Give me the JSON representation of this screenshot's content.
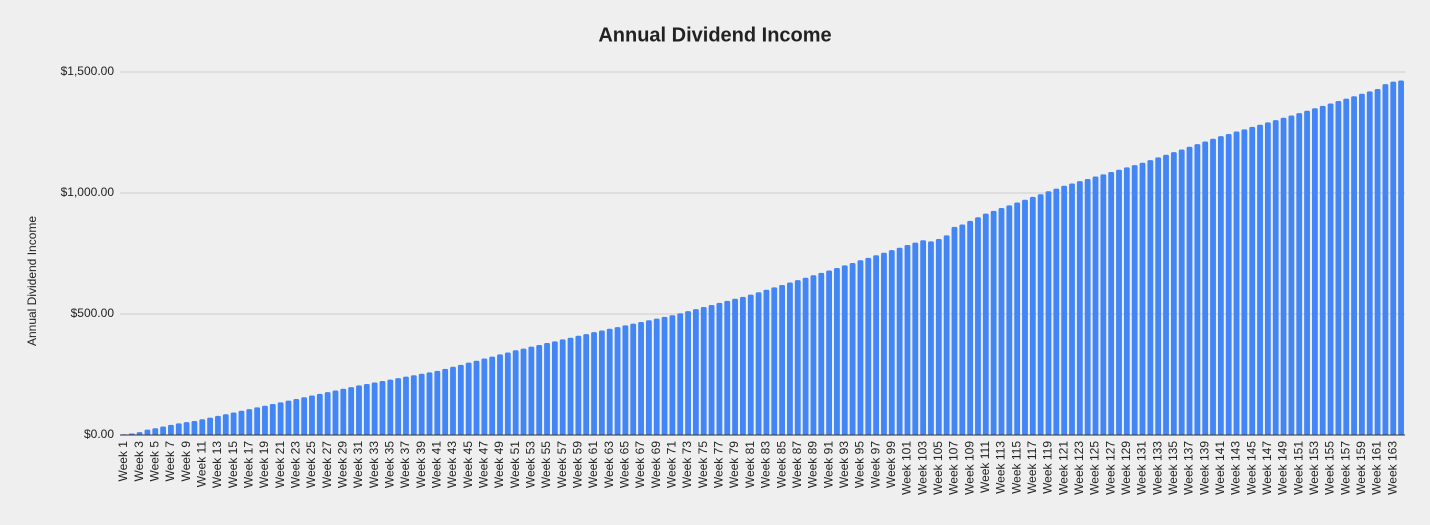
{
  "chart_data": {
    "type": "bar",
    "title": "Annual Dividend Income",
    "y_label": "Annual Dividend Income",
    "color": "#4285f4",
    "grid": true,
    "ylim": [
      0,
      1500
    ],
    "yticks": [
      {
        "value": 0,
        "label": "$0.00"
      },
      {
        "value": 500,
        "label": "$500.00"
      },
      {
        "value": 1000,
        "label": "$1,000.00"
      },
      {
        "value": 1500,
        "label": "$1,500.00"
      }
    ],
    "categories": [
      "Week 1",
      null,
      "Week 3",
      null,
      "Week 5",
      null,
      "Week 7",
      null,
      "Week 9",
      null,
      "Week 11",
      null,
      "Week 13",
      null,
      "Week 15",
      null,
      "Week 17",
      null,
      "Week 19",
      null,
      "Week 21",
      null,
      "Week 23",
      null,
      "Week 25",
      null,
      "Week 27",
      null,
      "Week 29",
      null,
      "Week 31",
      null,
      "Week 33",
      null,
      "Week 35",
      null,
      "Week 37",
      null,
      "Week 39",
      null,
      "Week 41",
      null,
      "Week 43",
      null,
      "Week 45",
      null,
      "Week 47",
      null,
      "Week 49",
      null,
      "Week 51",
      null,
      "Week 53",
      null,
      "Week 55",
      null,
      "Week 57",
      null,
      "Week 59",
      null,
      "Week 61",
      null,
      "Week 63",
      null,
      "Week 65",
      null,
      "Week 67",
      null,
      "Week 69",
      null,
      "Week 71",
      null,
      "Week 73",
      null,
      "Week 75",
      null,
      "Week 77",
      null,
      "Week 79",
      null,
      "Week 81",
      null,
      "Week 83",
      null,
      "Week 85",
      null,
      "Week 87",
      null,
      "Week 89",
      null,
      "Week 91",
      null,
      "Week 93",
      null,
      "Week 95",
      null,
      "Week 97",
      null,
      "Week 99",
      null,
      "Week 101",
      null,
      "Week 103",
      null,
      "Week 105",
      null,
      "Week 107",
      null,
      "Week 109",
      null,
      "Week 111",
      null,
      "Week 113",
      null,
      "Week 115",
      null,
      "Week 117",
      null,
      "Week 119",
      null,
      "Week 121",
      null,
      "Week 123",
      null,
      "Week 125",
      null,
      "Week 127",
      null,
      "Week 129",
      null,
      "Week 131",
      null,
      "Week 133",
      null,
      "Week 135",
      null,
      "Week 137",
      null,
      "Week 139",
      null,
      "Week 141",
      null,
      "Week 143",
      null,
      "Week 145",
      null,
      "Week 147",
      null,
      "Week 149",
      null,
      "Week 151",
      null,
      "Week 153",
      null,
      "Week 155",
      null,
      "Week 157",
      null,
      "Week 159",
      null,
      "Week 161",
      null,
      "Week 163",
      null
    ],
    "values": [
      3,
      6,
      12,
      22,
      28,
      35,
      42,
      48,
      53,
      58,
      65,
      72,
      79,
      86,
      93,
      100,
      107,
      114,
      121,
      128,
      135,
      142,
      149,
      156,
      163,
      170,
      177,
      184,
      191,
      198,
      205,
      211,
      217,
      223,
      229,
      235,
      241,
      247,
      253,
      259,
      265,
      273,
      282,
      290,
      299,
      307,
      316,
      324,
      333,
      341,
      350,
      357,
      365,
      372,
      380,
      387,
      395,
      402,
      410,
      417,
      425,
      432,
      439,
      446,
      453,
      460,
      467,
      474,
      481,
      488,
      495,
      503,
      512,
      520,
      529,
      537,
      546,
      554,
      563,
      571,
      580,
      590,
      600,
      610,
      620,
      630,
      640,
      650,
      660,
      670,
      680,
      690,
      701,
      711,
      722,
      732,
      743,
      753,
      764,
      774,
      785,
      795,
      805,
      800,
      810,
      825,
      860,
      870,
      885,
      900,
      915,
      926,
      938,
      949,
      961,
      972,
      984,
      995,
      1007,
      1018,
      1030,
      1039,
      1049,
      1058,
      1068,
      1077,
      1087,
      1096,
      1106,
      1115,
      1125,
      1136,
      1147,
      1158,
      1169,
      1180,
      1191,
      1202,
      1213,
      1224,
      1235,
      1244,
      1254,
      1263,
      1273,
      1282,
      1292,
      1301,
      1311,
      1320,
      1330,
      1340,
      1350,
      1360,
      1370,
      1380,
      1390,
      1400,
      1410,
      1420,
      1430,
      1450,
      1460,
      1465
    ]
  }
}
